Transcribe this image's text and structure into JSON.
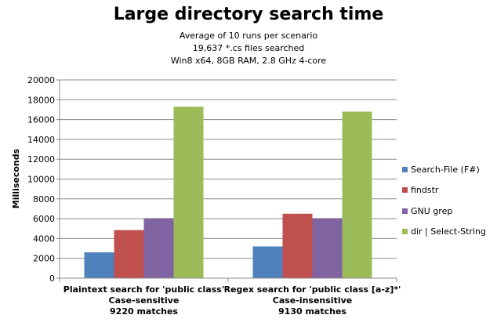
{
  "chart_data": {
    "type": "bar",
    "title": "Large directory search time",
    "subtitle_lines": [
      "Average of 10 runs per scenario",
      "19,637 *.cs files searched",
      "Win8 x64, 8GB RAM, 2.8 GHz 4-core"
    ],
    "xlabel": "",
    "ylabel": "Milliseconds",
    "ylim": [
      0,
      20000
    ],
    "yticks": [
      0,
      2000,
      4000,
      6000,
      8000,
      10000,
      12000,
      14000,
      16000,
      18000,
      20000
    ],
    "ytick_labels": [
      "0",
      "2000",
      "4000",
      "6000",
      "8000",
      "10000",
      "12000",
      "14000",
      "16000",
      "18000",
      "20000"
    ],
    "grid": true,
    "legend_position": "right",
    "categories": [
      [
        "Plaintext search for 'public class'",
        "Case-sensitive",
        "9220 matches"
      ],
      [
        "Regex search for 'public class [a-z]*'",
        "Case-insensitive",
        "9130 matches"
      ]
    ],
    "series": [
      {
        "name": "Search-File (F#)",
        "color": "#4f81bd",
        "values": [
          2600,
          3200
        ]
      },
      {
        "name": "findstr",
        "color": "#c0504d",
        "values": [
          4850,
          6500
        ]
      },
      {
        "name": "GNU grep",
        "color": "#8064a2",
        "values": [
          6050,
          6050
        ]
      },
      {
        "name": "dir | Select-String",
        "color": "#9bbb59",
        "values": [
          17300,
          16800
        ]
      }
    ]
  }
}
